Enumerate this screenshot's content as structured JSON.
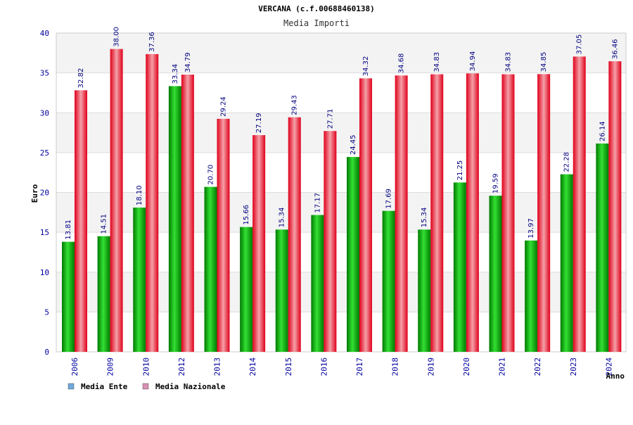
{
  "chart_data": {
    "type": "bar",
    "title": "VERCANA (c.f.00688460138)",
    "subtitle": "Media Importi",
    "ylabel": "Euro",
    "xlabel": "Anno",
    "ylim": [
      0,
      40
    ],
    "yticks": [
      0,
      5,
      10,
      15,
      20,
      25,
      30,
      35,
      40
    ],
    "categories": [
      "2006",
      "2009",
      "2010",
      "2012",
      "2013",
      "2014",
      "2015",
      "2016",
      "2017",
      "2018",
      "2019",
      "2020",
      "2021",
      "2022",
      "2023",
      "2024"
    ],
    "series": [
      {
        "name": "Media Ente",
        "color": "#00a000",
        "legend_color": "#6fa8dc",
        "values": [
          13.81,
          14.51,
          18.1,
          33.34,
          20.7,
          15.66,
          15.34,
          17.17,
          24.45,
          17.69,
          15.34,
          21.25,
          19.59,
          13.97,
          22.28,
          26.14
        ],
        "labels": [
          "13.81",
          "14.51",
          "18.10",
          "33.34",
          "20.70",
          "15.66",
          "15.34",
          "17.17",
          "24.45",
          "17.69",
          "15.34",
          "21.25",
          "19.59",
          "13.97",
          "22.28",
          "26.14"
        ]
      },
      {
        "name": "Media Nazionale",
        "color": "#e0101a",
        "legend_color": "#d98fb5",
        "values": [
          32.82,
          38.0,
          37.36,
          34.79,
          29.24,
          27.19,
          29.43,
          27.71,
          34.32,
          34.68,
          34.83,
          34.94,
          34.83,
          34.85,
          37.05,
          36.46
        ],
        "labels": [
          "32.82",
          "38.00",
          "37.36",
          "34.79",
          "29.24",
          "27.19",
          "29.43",
          "27.71",
          "34.32",
          "34.68",
          "34.83",
          "34.94",
          "34.83",
          "34.85",
          "37.05",
          "36.46"
        ]
      }
    ],
    "grid": true,
    "legend_position": "bottom-left"
  }
}
